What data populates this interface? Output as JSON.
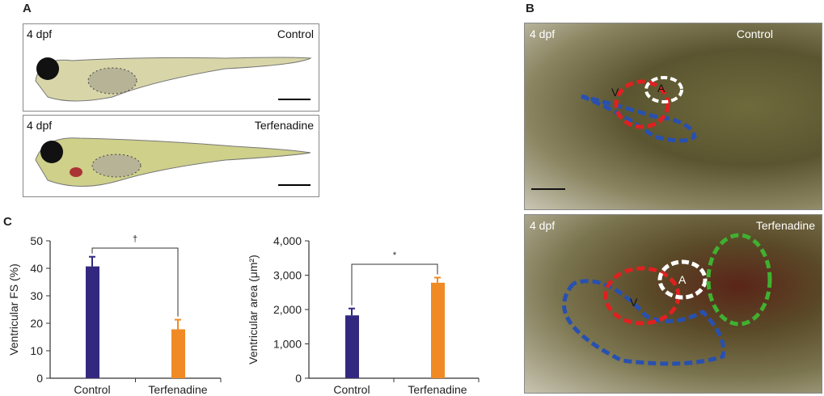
{
  "panels": {
    "a": {
      "label": "A",
      "top": {
        "stage": "4 dpf",
        "condition": "Control"
      },
      "bottom": {
        "stage": "4 dpf",
        "condition": "Terfenadine"
      }
    },
    "b": {
      "label": "B",
      "top": {
        "stage": "4 dpf",
        "condition": "Control",
        "markers": [
          "V",
          "A"
        ]
      },
      "bottom": {
        "stage": "4 dpf",
        "condition": "Terfenadine",
        "markers": [
          "V",
          "A"
        ]
      }
    },
    "c": {
      "label": "C"
    }
  },
  "colors": {
    "control": "#33287f",
    "terfenadine": "#f08a24",
    "outline_red": "#e02020",
    "outline_white": "#ffffff",
    "outline_blue": "#2850b0",
    "outline_green": "#40b030"
  },
  "chart_data": [
    {
      "type": "bar",
      "title": "",
      "ylabel": "Ventricular FS (%)",
      "xlabel": "",
      "categories": [
        "Control",
        "Terfenadine"
      ],
      "values": [
        40.7,
        17.8
      ],
      "errors": [
        3.5,
        3.5
      ],
      "ylim": [
        0,
        50
      ],
      "yticks": [
        "0",
        "10",
        "20",
        "30",
        "40",
        "50"
      ],
      "significance": "†"
    },
    {
      "type": "bar",
      "title": "",
      "ylabel": "Ventricular area (μm²)",
      "xlabel": "",
      "categories": [
        "Control",
        "Terfenadine"
      ],
      "values": [
        1830,
        2780
      ],
      "errors": [
        200,
        150
      ],
      "ylim": [
        0,
        4000
      ],
      "yticks": [
        "0",
        "1,000",
        "2,000",
        "3,000",
        "4,000"
      ],
      "significance": "*"
    }
  ]
}
